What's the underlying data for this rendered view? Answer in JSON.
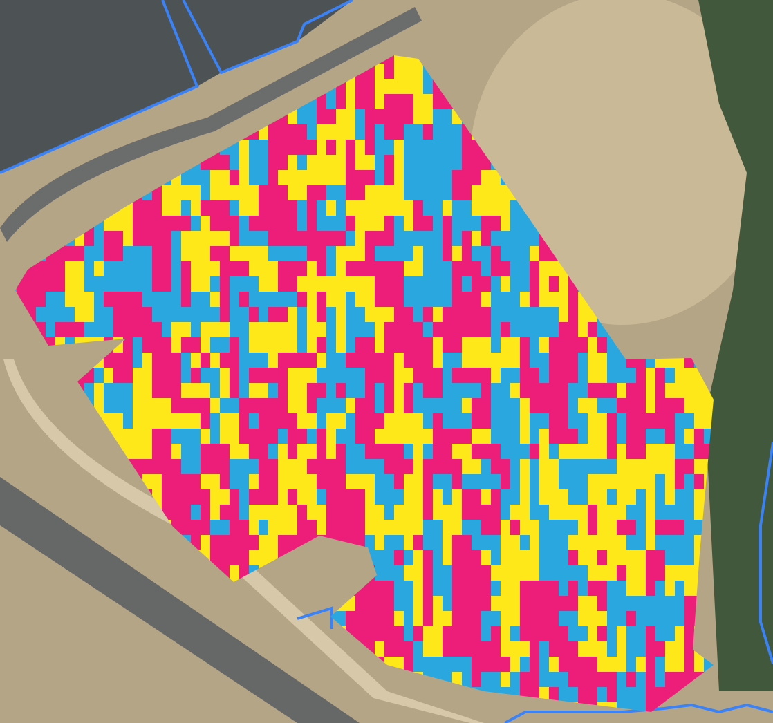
{
  "map": {
    "type": "satellite",
    "colors": {
      "ground": "#b5a587",
      "ground_light": "#cbbd9f",
      "greenhouse": "#4a5052",
      "vegetation": "#3f5a3a",
      "road": "#6b6c6c",
      "boundary": "#3b82f6"
    },
    "overlay": {
      "palette": [
        "#ec1e79",
        "#ffe81a",
        "#2ba7e0"
      ],
      "weights": [
        0.36,
        0.32,
        0.32
      ]
    }
  }
}
